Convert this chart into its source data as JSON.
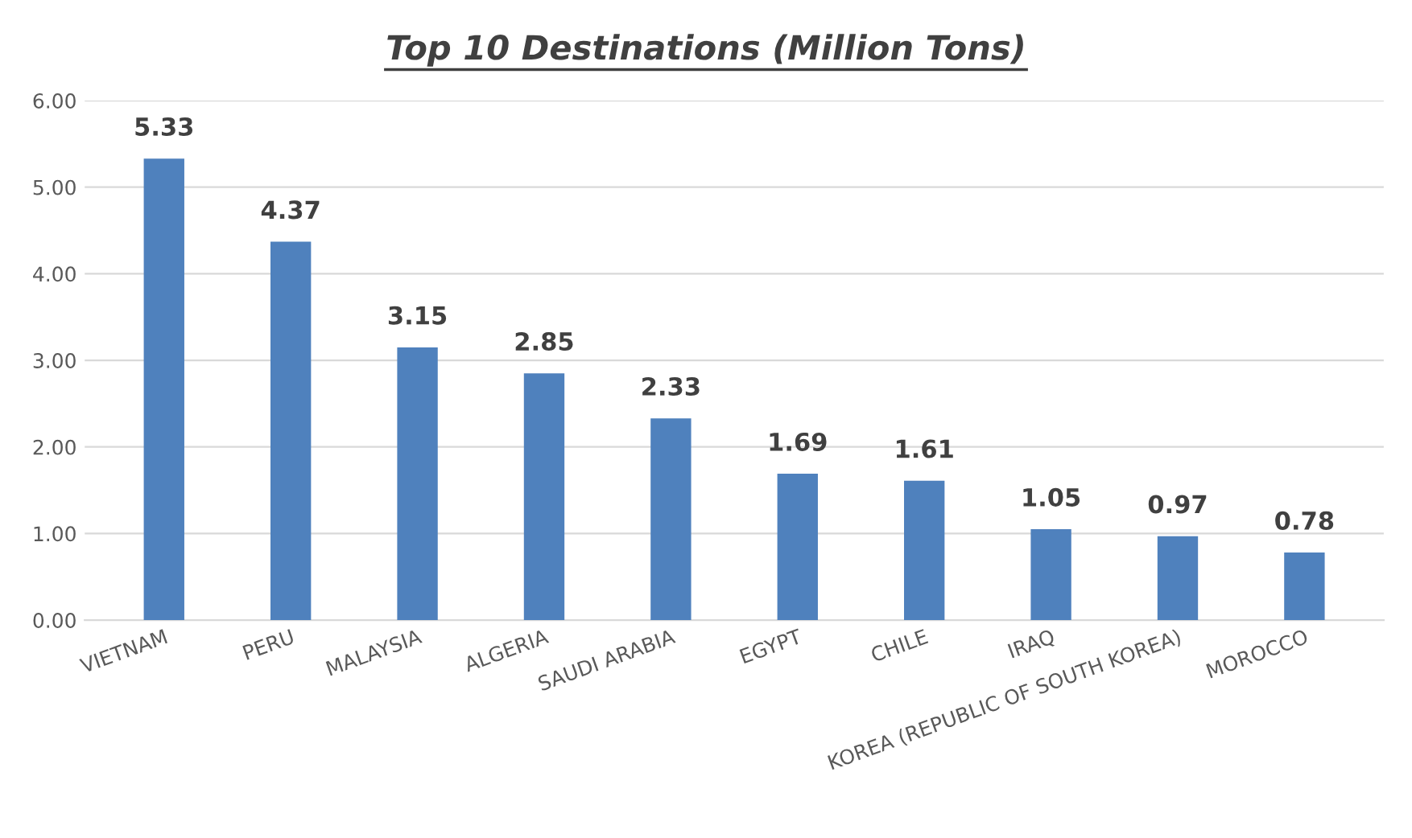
{
  "chart_data": {
    "type": "bar",
    "title": "Top 10 Destinations (Million Tons)",
    "categories": [
      "VIETNAM",
      "PERU",
      "MALAYSIA",
      "ALGERIA",
      "SAUDI ARABIA",
      "EGYPT",
      "CHILE",
      "IRAQ",
      "KOREA (REPUBLIC OF SOUTH KOREA)",
      "MOROCCO"
    ],
    "values": [
      5.33,
      4.37,
      3.15,
      2.85,
      2.33,
      1.69,
      1.61,
      1.05,
      0.97,
      0.78
    ],
    "color": "#4f81bd",
    "ylim": [
      0,
      6
    ],
    "yticks": [
      {
        "value": 0,
        "label": "0.00"
      },
      {
        "value": 1,
        "label": "1.00"
      },
      {
        "value": 2,
        "label": "2.00"
      },
      {
        "value": 3,
        "label": "3.00"
      },
      {
        "value": 4,
        "label": "4.00"
      },
      {
        "value": 5,
        "label": "5.00"
      },
      {
        "value": 6,
        "label": "6.00"
      }
    ],
    "grid": "y",
    "data_labels": true
  }
}
